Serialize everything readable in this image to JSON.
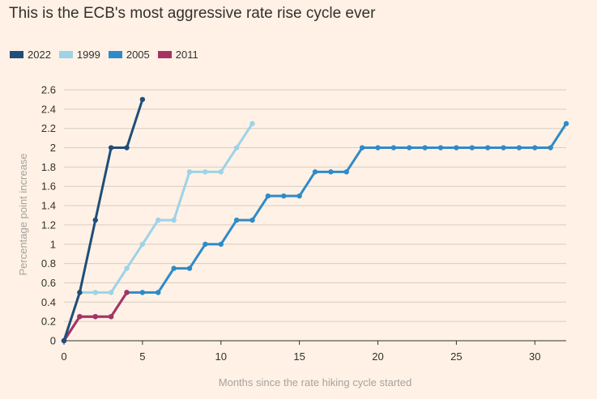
{
  "title": "This is the ECB's most aggressive rate rise cycle ever",
  "chart_data": {
    "type": "line",
    "title": "This is the ECB's most aggressive rate rise cycle ever",
    "xlabel": "Months since the rate hiking cycle started",
    "ylabel": "Percentage point increase",
    "xlim": [
      0,
      32
    ],
    "ylim": [
      0,
      2.6
    ],
    "x_ticks": [
      0,
      5,
      10,
      15,
      20,
      25,
      30
    ],
    "x_tick_labels": [
      "0",
      "5",
      "10",
      "15",
      "20",
      "25",
      "30"
    ],
    "y_ticks": [
      0,
      0.2,
      0.4,
      0.6,
      0.8,
      1,
      1.2,
      1.4,
      1.6,
      1.8,
      2,
      2.2,
      2.4,
      2.6
    ],
    "y_tick_labels": [
      "0",
      "0.2",
      "0.4",
      "0.6",
      "0.8",
      "1",
      "1.2",
      "1.4",
      "1.6",
      "1.8",
      "2",
      "2.2",
      "2.4",
      "2.6"
    ],
    "grid": "horizontal",
    "legend_position": "top-left",
    "series": [
      {
        "name": "2022",
        "color": "#1f4e79",
        "x": [
          0,
          1,
          2,
          3,
          4,
          5
        ],
        "y": [
          0,
          0.5,
          1.25,
          2,
          2,
          2.5
        ]
      },
      {
        "name": "1999",
        "color": "#9cd3e8",
        "x": [
          0,
          1,
          2,
          3,
          4,
          5,
          6,
          7,
          8,
          9,
          10,
          11,
          12
        ],
        "y": [
          0,
          0.5,
          0.5,
          0.5,
          0.75,
          1,
          1.25,
          1.25,
          1.75,
          1.75,
          1.75,
          2,
          2.25
        ]
      },
      {
        "name": "2005",
        "color": "#2e8bc9",
        "x": [
          0,
          1,
          2,
          3,
          4,
          5,
          6,
          7,
          8,
          9,
          10,
          11,
          12,
          13,
          14,
          15,
          16,
          17,
          18,
          19,
          20,
          21,
          22,
          23,
          24,
          25,
          26,
          27,
          28,
          29,
          30,
          31,
          32
        ],
        "y": [
          0,
          0.25,
          0.25,
          0.25,
          0.5,
          0.5,
          0.5,
          0.75,
          0.75,
          1,
          1,
          1.25,
          1.25,
          1.5,
          1.5,
          1.5,
          1.75,
          1.75,
          1.75,
          2,
          2,
          2,
          2,
          2,
          2,
          2,
          2,
          2,
          2,
          2,
          2,
          2,
          2.25
        ]
      },
      {
        "name": "2011",
        "color": "#a63462",
        "x": [
          0,
          1,
          2,
          3,
          4
        ],
        "y": [
          0,
          0.25,
          0.25,
          0.25,
          0.5
        ]
      }
    ]
  }
}
